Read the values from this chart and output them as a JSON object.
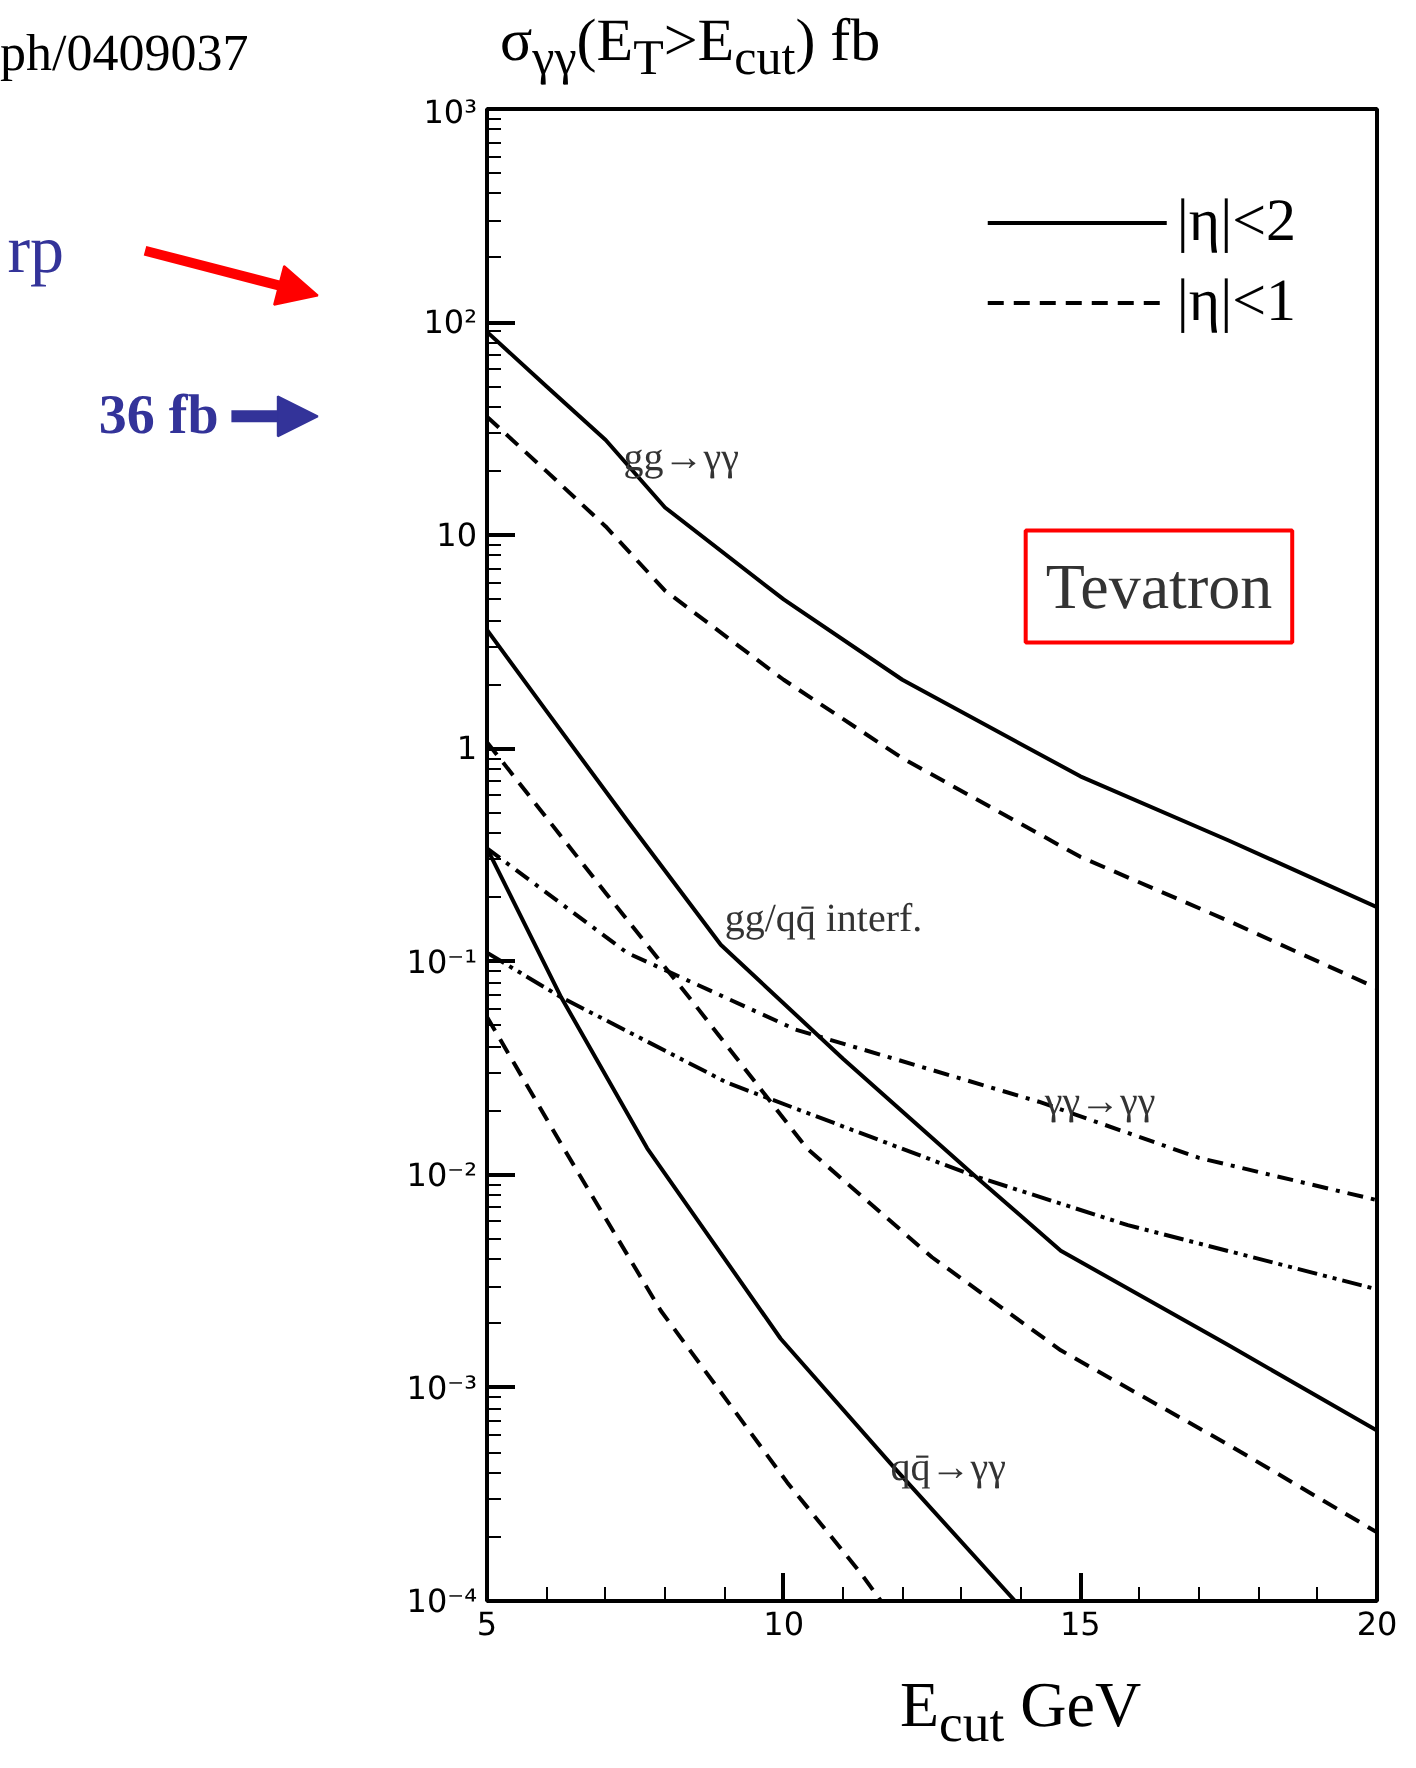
{
  "chart_data": {
    "type": "line",
    "title": "σ$_{γγ}$(E$_{T}$>E$_{cut}$)  fb",
    "xlabel": "E$_{cut}$ GeV",
    "log": "y",
    "xlim": [
      5,
      20
    ],
    "xticks": [
      5,
      10,
      15,
      20
    ],
    "ylim": [
      0.0001,
      1000
    ],
    "yticks": [
      {
        "value": 0.0001,
        "label": "10⁻⁴"
      },
      {
        "value": 0.001,
        "label": "10⁻³"
      },
      {
        "value": 0.01,
        "label": "10⁻²"
      },
      {
        "value": 0.1,
        "label": "10⁻¹"
      },
      1,
      10,
      {
        "value": 100,
        "label": "10²"
      },
      {
        "value": 1000,
        "label": "10³"
      }
    ],
    "grid": false,
    "legend": "top right",
    "marker": "none",
    "series": [
      {
        "name": "|η|<2",
        "color": "#000000",
        "line_style": "solid",
        "x": [
          5,
          6,
          7,
          8,
          10,
          12,
          15,
          17.5,
          20
        ],
        "values": [
          90,
          50,
          28,
          13.5,
          5.0,
          2.1,
          0.74,
          0.37,
          0.18
        ]
      },
      {
        "name": "|η|<1",
        "color": "#000000",
        "line_style": "dashed",
        "x": [
          5,
          6,
          7,
          8,
          10,
          12,
          15,
          17.5,
          20
        ],
        "values": [
          36,
          20,
          11,
          5.5,
          2.1,
          0.9,
          0.31,
          0.155,
          0.075
        ]
      },
      {
        "color": "#000000",
        "line_style": "solid",
        "x": [
          5,
          6,
          7.36,
          8.94,
          11,
          13.2,
          14.67,
          17.47,
          20
        ],
        "values": [
          3.6,
          1.5,
          0.46,
          0.12,
          0.035,
          0.01,
          0.0044,
          0.0016,
          0.00063
        ]
      },
      {
        "color": "#000000",
        "line_style": "dashed",
        "x": [
          5,
          7,
          8.5,
          10.39,
          12.5,
          14.67,
          17.5,
          20
        ],
        "values": [
          1.07,
          0.21,
          0.063,
          0.0133,
          0.0041,
          0.0015,
          0.00054,
          0.00021
        ]
      },
      {
        "color": "#000000",
        "line_style": "dashdot",
        "x": [
          5,
          7.36,
          10.2,
          14.3,
          17,
          20
        ],
        "values": [
          0.34,
          0.11,
          0.048,
          0.022,
          0.012,
          0.0076
        ]
      },
      {
        "color": "#000000",
        "line_style": "dashdotdot",
        "x": [
          5,
          6.25,
          9.05,
          13.2,
          15.8,
          20
        ],
        "values": [
          0.11,
          0.068,
          0.027,
          0.0099,
          0.0058,
          0.0029
        ]
      },
      {
        "color": "#000000",
        "line_style": "solid",
        "x": [
          5,
          6.25,
          7.7,
          9.95,
          11.87,
          13.9
        ],
        "values": [
          0.34,
          0.068,
          0.0133,
          0.0017,
          0.00042,
          0.0001
        ]
      },
      {
        "color": "#000000",
        "line_style": "dashed",
        "x": [
          5,
          6.35,
          7.93,
          10.06,
          11.3,
          11.64
        ],
        "values": [
          0.055,
          0.0125,
          0.0023,
          0.00036,
          0.000135,
          0.0001
        ]
      }
    ],
    "annotations": [
      "ph/0409037",
      "rp",
      "36 fb",
      {
        "text": "gg→γγ",
        "x": 7.3,
        "y": 23
      },
      "gg/qq̄ interf.",
      {
        "text": "γγ→γγ",
        "x": 14.4,
        "y": 0.022
      },
      {
        "text": "qq̄→γγ",
        "x": 11.8,
        "y": 0.00042
      },
      "Tevatron"
    ]
  }
}
